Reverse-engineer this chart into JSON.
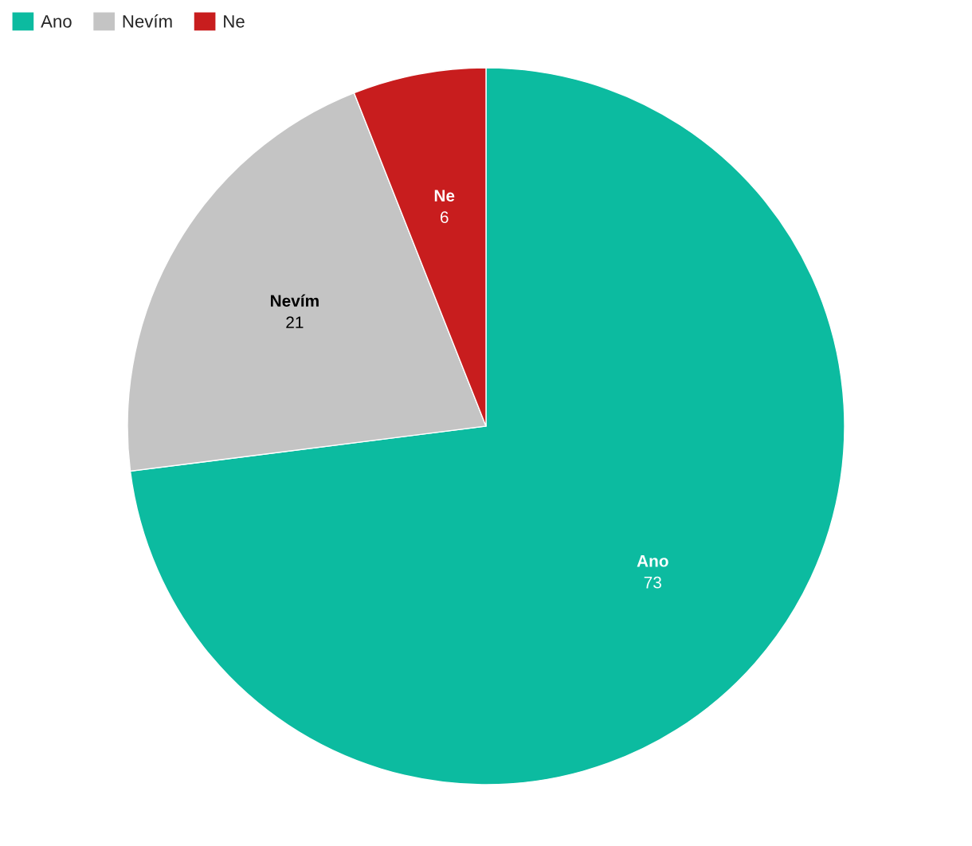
{
  "chart_data": {
    "type": "pie",
    "categories": [
      "Ano",
      "Nevím",
      "Ne"
    ],
    "values": [
      73,
      21,
      6
    ],
    "colors": [
      "#0cbba0",
      "#c4c4c4",
      "#c81d1e"
    ],
    "data_labels": true,
    "legend": "top left"
  }
}
